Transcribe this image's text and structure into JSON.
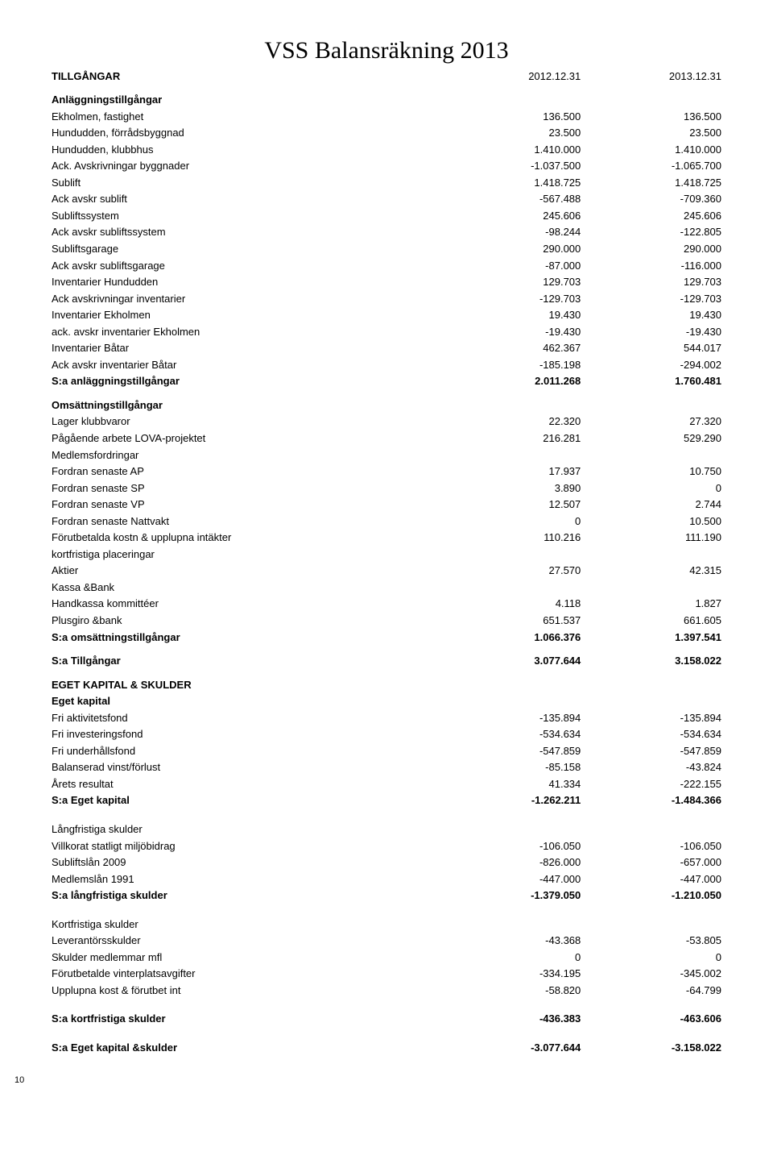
{
  "title": "VSS Balansräkning 2013",
  "col1": "2012.12.31",
  "col2": "2013.12.31",
  "sections": {
    "tillgangar": "TILLGÅNGAR",
    "anlaggning": "Anläggningstillgångar",
    "s_anlaggning": "S:a anläggningstillgångar",
    "omsattning": "Omsättningstillgångar",
    "medlemsfordringar": "Medlemsfordringar",
    "kortplacer": "kortfristiga placeringar",
    "kassa": "Kassa &Bank",
    "s_omsattning": "S:a omsättningstillgångar",
    "s_tillgangar": "S:a Tillgångar",
    "eget_skulder": "EGET KAPITAL & SKULDER",
    "eget_kapital": "Eget kapital",
    "s_eget": "S:a Eget kapital",
    "lang": "Långfristiga skulder",
    "s_lang": "S:a långfristiga skulder",
    "kort": "Kortfristiga skulder",
    "s_kort": "S:a kortfristiga skulder",
    "s_eget_skulder": "S:a Eget kapital &skulder"
  },
  "rows": {
    "ekholmen_fast": {
      "l": "Ekholmen, fastighet",
      "a": "136.500",
      "b": "136.500"
    },
    "hund_forrad": {
      "l": "Hundudden, förrådsbyggnad",
      "a": "23.500",
      "b": "23.500"
    },
    "hund_klubb": {
      "l": "Hundudden, klubbhus",
      "a": "1.410.000",
      "b": "1.410.000"
    },
    "ack_avskr_bygg": {
      "l": "Ack. Avskrivningar byggnader",
      "a": "-1.037.500",
      "b": "-1.065.700"
    },
    "sublift": {
      "l": "Sublift",
      "a": "1.418.725",
      "b": "1.418.725"
    },
    "ack_sublift": {
      "l": "Ack avskr sublift",
      "a": "-567.488",
      "b": "-709.360"
    },
    "subliftsystem": {
      "l": "Subliftssystem",
      "a": "245.606",
      "b": "245.606"
    },
    "ack_subliftsystem": {
      "l": "Ack avskr subliftssystem",
      "a": "-98.244",
      "b": "-122.805"
    },
    "subliftsgarage": {
      "l": "Subliftsgarage",
      "a": "290.000",
      "b": "290.000"
    },
    "ack_subliftsgarage": {
      "l": "Ack avskr subliftsgarage",
      "a": "-87.000",
      "b": "-116.000"
    },
    "inv_hund": {
      "l": "Inventarier Hundudden",
      "a": "129.703",
      "b": "129.703"
    },
    "ack_inv": {
      "l": "Ack avskrivningar inventarier",
      "a": "-129.703",
      "b": "-129.703"
    },
    "inv_ekholmen": {
      "l": "Inventarier  Ekholmen",
      "a": "19.430",
      "b": "19.430"
    },
    "ack_inv_ekholmen": {
      "l": "ack. avskr inventarier Ekholmen",
      "a": "-19.430",
      "b": "-19.430"
    },
    "inv_batar": {
      "l": "Inventarier Båtar",
      "a": "462.367",
      "b": "544.017"
    },
    "ack_inv_batar": {
      "l": "Ack avskr inventarier Båtar",
      "a": "-185.198",
      "b": "-294.002"
    },
    "s_anl": {
      "a": "2.011.268",
      "b": "1.760.481"
    },
    "lager": {
      "l": "Lager klubbvaror",
      "a": "22.320",
      "b": "27.320"
    },
    "lova": {
      "l": "Pågående arbete LOVA-projektet",
      "a": "216.281",
      "b": "529.290"
    },
    "fordran_ap": {
      "l": "Fordran senaste AP",
      "a": "17.937",
      "b": "10.750"
    },
    "fordran_sp": {
      "l": "Fordran senaste SP",
      "a": "3.890",
      "b": "0"
    },
    "fordran_vp": {
      "l": "Fordran senaste VP",
      "a": "12.507",
      "b": "2.744"
    },
    "fordran_natt": {
      "l": "Fordran senaste Nattvakt",
      "a": "0",
      "b": "10.500"
    },
    "forut": {
      "l": "Förutbetalda kostn & upplupna intäkter",
      "a": "110.216",
      "b": "111.190"
    },
    "aktier": {
      "l": "Aktier",
      "a": "27.570",
      "b": "42.315"
    },
    "handkassa": {
      "l": "Handkassa kommittéer",
      "a": "4.118",
      "b": "1.827"
    },
    "plusgiro": {
      "l": "Plusgiro &bank",
      "a": "651.537",
      "b": "661.605"
    },
    "s_oms": {
      "a": "1.066.376",
      "b": "1.397.541"
    },
    "s_till": {
      "a": "3.077.644",
      "b": "3.158.022"
    },
    "fri_akt": {
      "l": "Fri aktivitetsfond",
      "a": "-135.894",
      "b": "-135.894"
    },
    "fri_inv": {
      "l": "Fri investeringsfond",
      "a": "-534.634",
      "b": "-534.634"
    },
    "fri_under": {
      "l": "Fri underhållsfond",
      "a": "-547.859",
      "b": "-547.859"
    },
    "bal_vinst": {
      "l": "Balanserad vinst/förlust",
      "a": "-85.158",
      "b": "-43.824"
    },
    "arets": {
      "l": "Årets resultat",
      "a": "41.334",
      "b": "-222.155"
    },
    "s_eget": {
      "a": "-1.262.211",
      "b": "-1.484.366"
    },
    "villkorat": {
      "l": "Villkorat statligt miljöbidrag",
      "a": "-106.050",
      "b": "-106.050"
    },
    "subliftslan": {
      "l": "Subliftslån 2009",
      "a": "-826.000",
      "b": "-657.000"
    },
    "medlemslan": {
      "l": "Medlemslån 1991",
      "a": "-447.000",
      "b": "-447.000"
    },
    "s_lang": {
      "a": "-1.379.050",
      "b": "-1.210.050"
    },
    "lev": {
      "l": "Leverantörsskulder",
      "a": "-43.368",
      "b": "-53.805"
    },
    "sk_med": {
      "l": "Skulder medlemmar mfl",
      "a": "0",
      "b": "0"
    },
    "forut_vinter": {
      "l": "Förutbetalde vinterplatsavgifter",
      "a": "-334.195",
      "b": "-345.002"
    },
    "upplupna": {
      "l": "Upplupna kost & förutbet int",
      "a": "-58.820",
      "b": "-64.799"
    },
    "s_kort": {
      "a": "-436.383",
      "b": "-463.606"
    },
    "s_egetsk": {
      "a": "-3.077.644",
      "b": "-3.158.022"
    }
  },
  "page_number": "10"
}
